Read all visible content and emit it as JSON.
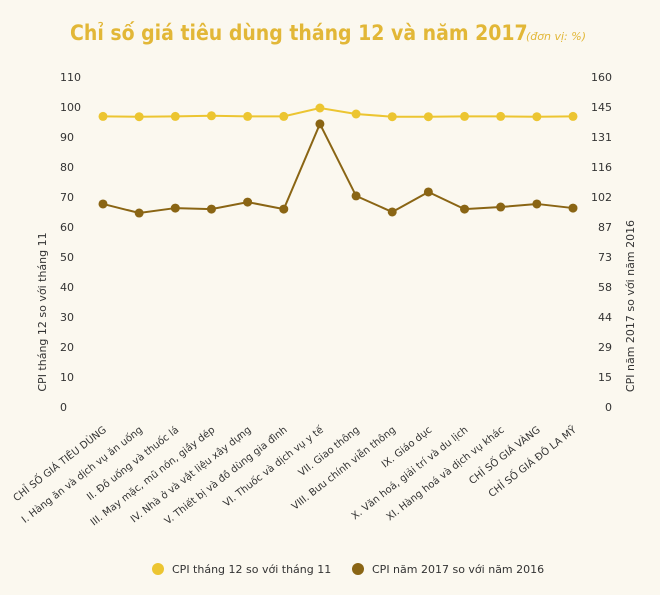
{
  "chart_data": {
    "type": "line",
    "title": "Chỉ số giá tiêu dùng tháng 12 và năm 2017",
    "subtitle": "(đơn vị: %)",
    "y_label": "CPI tháng 12 so với tháng 11",
    "y2_label": "CPI năm 2017 so với năm 2016",
    "categories": [
      "CHỈ SỐ GIÁ TIÊU DÙNG",
      "I. Hàng ăn và dịch vụ ăn uống",
      "II. Đồ uống và thuốc lá",
      "III. May mặc, mũ nón, giầy dép",
      "IV. Nhà ở và vật liệu xây dựng",
      "V. Thiết bị và đồ dùng gia đình",
      "VI. Thuốc và dịch vụ y tế",
      "VII. Giao thông",
      "VIII. Bưu chính viễn thông",
      "IX. Giáo dục",
      "X. Văn hoá, giải trí và du lịch",
      "XI. Hàng hoá và dịch vụ khác",
      "CHỈ SỐ GIÁ VÀNG",
      "CHỈ SỐ GIÁ ĐÔ LA MỸ"
    ],
    "series": [
      {
        "name": "CPI tháng 12 so với tháng 11",
        "color": "#ecc531",
        "axis": "y",
        "values": [
          100.2,
          100.1,
          100.2,
          100.4,
          100.2,
          100.2,
          103.0,
          101.0,
          100.1,
          100.1,
          100.2,
          100.2,
          100.1,
          100.2
        ]
      },
      {
        "name": "CPI năm 2017 so với năm 2016",
        "color": "#8a6514",
        "axis": "y2",
        "values": [
          103.3,
          98.9,
          101.3,
          100.8,
          104.2,
          100.8,
          142.1,
          107.2,
          99.4,
          109.1,
          100.8,
          101.8,
          103.3,
          101.3
        ]
      }
    ],
    "ylim": [
      0,
      110
    ],
    "yticks": [
      0,
      10,
      20,
      30,
      40,
      50,
      60,
      70,
      80,
      90,
      100,
      110
    ],
    "y2lim": [
      0,
      160
    ],
    "y2ticks": [
      0,
      {
        "value": 14.545,
        "label": "15"
      },
      {
        "value": 29.091,
        "label": "29"
      },
      {
        "value": 43.636,
        "label": "44"
      },
      {
        "value": 58.182,
        "label": "58"
      },
      {
        "value": 72.727,
        "label": "73"
      },
      {
        "value": 87.273,
        "label": "87"
      },
      {
        "value": 101.818,
        "label": "102"
      },
      {
        "value": 116.364,
        "label": "116"
      },
      {
        "value": 130.909,
        "label": "131"
      },
      {
        "value": 145.455,
        "label": "145"
      },
      160
    ]
  }
}
